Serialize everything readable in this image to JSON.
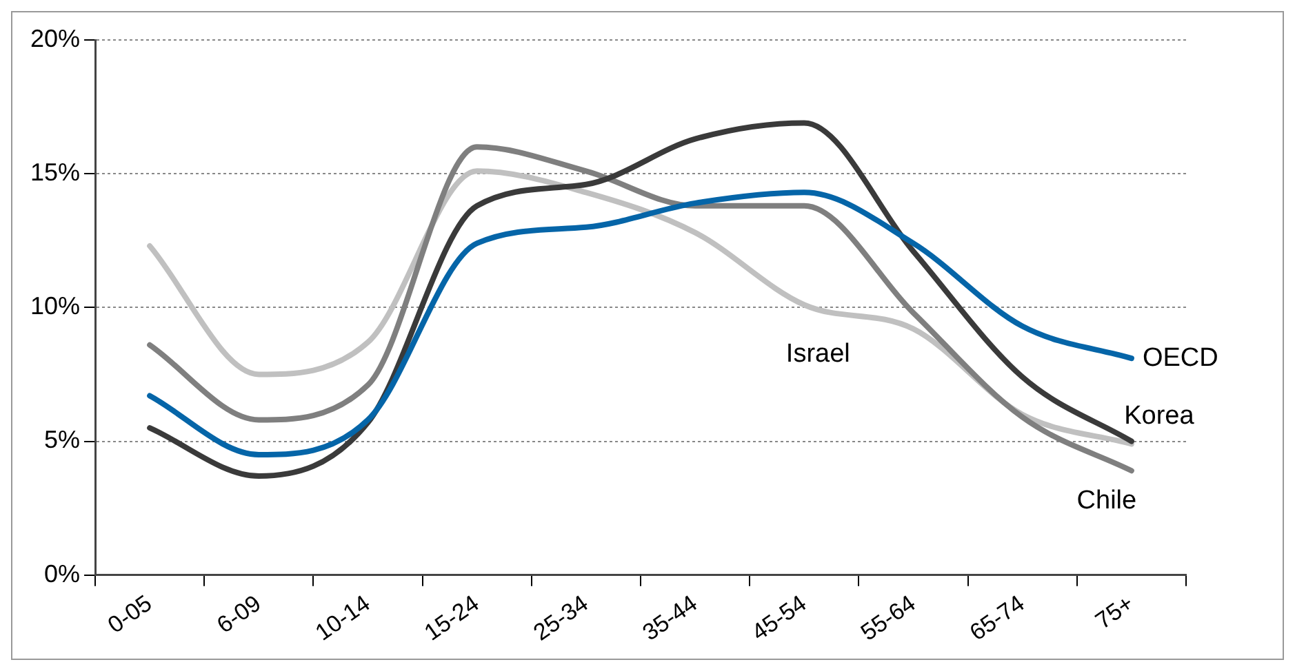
{
  "chart_data": {
    "type": "line",
    "categories": [
      "0-05",
      "6-09",
      "10-14",
      "15-24",
      "25-34",
      "35-44",
      "45-54",
      "55-64",
      "65-74",
      "75+"
    ],
    "series": [
      {
        "name": "OECD",
        "color": "#0565a8",
        "values": [
          6.7,
          4.5,
          5.8,
          12.4,
          13.0,
          13.9,
          14.3,
          12.4,
          9.3,
          8.1
        ]
      },
      {
        "name": "Korea",
        "color": "#3a3a3a",
        "values": [
          5.5,
          3.7,
          5.7,
          13.8,
          14.6,
          16.3,
          16.9,
          12.1,
          7.4,
          5.0
        ]
      },
      {
        "name": "Chile",
        "color": "#7f7f7f",
        "values": [
          8.6,
          5.8,
          7.1,
          16.0,
          15.1,
          13.8,
          13.8,
          9.8,
          5.9,
          3.9
        ]
      },
      {
        "name": "Israel",
        "color": "#c0c0c0",
        "values": [
          12.3,
          7.5,
          8.7,
          15.1,
          14.3,
          12.8,
          10.1,
          9.2,
          6.0,
          4.9
        ]
      }
    ],
    "ylim": [
      0,
      20
    ],
    "yticks": [
      {
        "value": 0,
        "label": "0%"
      },
      {
        "value": 5,
        "label": "5%"
      },
      {
        "value": 10,
        "label": "10%"
      },
      {
        "value": 15,
        "label": "15%"
      },
      {
        "value": 20,
        "label": "20%"
      }
    ],
    "grid": "y",
    "legend": false,
    "marker": "none",
    "line_style": "solid"
  }
}
